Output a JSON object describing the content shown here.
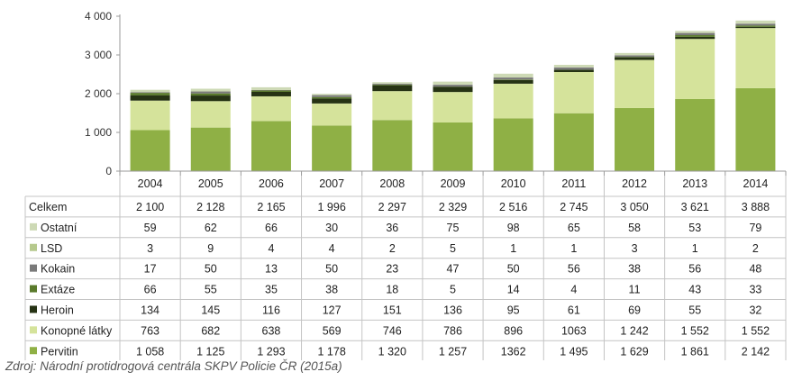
{
  "chart_data": {
    "type": "bar",
    "stacked": true,
    "categories": [
      "2004",
      "2005",
      "2006",
      "2007",
      "2008",
      "2009",
      "2010",
      "2011",
      "2012",
      "2013",
      "2014"
    ],
    "y_ticks": [
      "0",
      "1 000",
      "2 000",
      "3 000",
      "4 000"
    ],
    "ylim": [
      0,
      4000
    ],
    "grid": false,
    "legend": "table-rows-left",
    "series": [
      {
        "name": "Pervitin",
        "color": "#8fb045",
        "values": [
          1058,
          1125,
          1293,
          1178,
          1320,
          1257,
          1362,
          1495,
          1629,
          1861,
          2142
        ],
        "labels": [
          "1 058",
          "1 125",
          "1 293",
          "1 178",
          "1 320",
          "1 257",
          "1362",
          "1 495",
          "1 629",
          "1 861",
          "2 142"
        ]
      },
      {
        "name": "Konopné látky",
        "color": "#d5e39b",
        "values": [
          763,
          682,
          638,
          569,
          746,
          786,
          896,
          1063,
          1242,
          1552,
          1552
        ],
        "labels": [
          "763",
          "682",
          "638",
          "569",
          "746",
          "786",
          "896",
          "1063",
          "1 242",
          "1 552",
          "1 552"
        ]
      },
      {
        "name": "Heroin",
        "color": "#263314",
        "values": [
          134,
          145,
          116,
          127,
          151,
          136,
          95,
          61,
          69,
          55,
          32
        ],
        "labels": [
          "134",
          "145",
          "116",
          "127",
          "151",
          "136",
          "95",
          "61",
          "69",
          "55",
          "32"
        ]
      },
      {
        "name": "Extáze",
        "color": "#5a7a2c",
        "values": [
          66,
          55,
          35,
          38,
          18,
          5,
          14,
          4,
          11,
          43,
          33
        ],
        "labels": [
          "66",
          "55",
          "35",
          "38",
          "18",
          "5",
          "14",
          "4",
          "11",
          "43",
          "33"
        ]
      },
      {
        "name": "Kokain",
        "color": "#7a7a7a",
        "values": [
          17,
          50,
          13,
          50,
          23,
          47,
          50,
          56,
          38,
          56,
          48
        ],
        "labels": [
          "17",
          "50",
          "13",
          "50",
          "23",
          "47",
          "50",
          "56",
          "38",
          "56",
          "48"
        ]
      },
      {
        "name": "LSD",
        "color": "#b6c98d",
        "values": [
          3,
          9,
          4,
          4,
          2,
          5,
          1,
          1,
          3,
          1,
          2
        ],
        "labels": [
          "3",
          "9",
          "4",
          "4",
          "2",
          "5",
          "1",
          "1",
          "3",
          "1",
          "2"
        ]
      },
      {
        "name": "Ostatní",
        "color": "#cdd9b5",
        "values": [
          59,
          62,
          66,
          30,
          36,
          75,
          98,
          65,
          58,
          53,
          79
        ],
        "labels": [
          "59",
          "62",
          "66",
          "30",
          "36",
          "75",
          "98",
          "65",
          "58",
          "53",
          "79"
        ]
      }
    ],
    "totals": {
      "name": "Celkem",
      "values": [
        2100,
        2128,
        2165,
        1996,
        2297,
        2329,
        2516,
        2745,
        3050,
        3621,
        3888
      ],
      "labels": [
        "2 100",
        "2 128",
        "2 165",
        "1 996",
        "2 297",
        "2 329",
        "2 516",
        "2 745",
        "3 050",
        "3 621",
        "3 888"
      ]
    }
  },
  "source": "Zdroj: Národní protidrogová centrála SKPV Policie ČR (2015a)"
}
